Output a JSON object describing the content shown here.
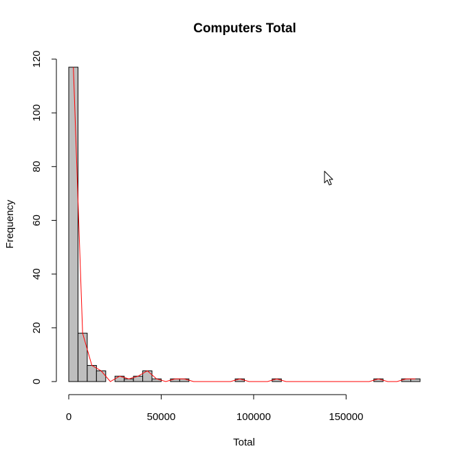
{
  "chart_data": {
    "type": "bar",
    "title": "Computers Total",
    "xlabel": "Total",
    "ylabel": "Frequency",
    "xlim": [
      0,
      190000
    ],
    "ylim": [
      0,
      120
    ],
    "bin_width": 5000,
    "xticks": [
      0,
      50000,
      100000,
      150000
    ],
    "xtick_labels": [
      "0",
      "50000",
      "100000",
      "150000"
    ],
    "yticks": [
      0,
      20,
      40,
      60,
      80,
      100,
      120
    ],
    "ytick_labels": [
      "0",
      "20",
      "40",
      "60",
      "80",
      "100",
      "120"
    ],
    "bins": [
      {
        "start": 0,
        "end": 5000,
        "count": 117
      },
      {
        "start": 5000,
        "end": 10000,
        "count": 18
      },
      {
        "start": 10000,
        "end": 15000,
        "count": 6
      },
      {
        "start": 15000,
        "end": 20000,
        "count": 4
      },
      {
        "start": 20000,
        "end": 25000,
        "count": 0
      },
      {
        "start": 25000,
        "end": 30000,
        "count": 2
      },
      {
        "start": 30000,
        "end": 35000,
        "count": 1
      },
      {
        "start": 35000,
        "end": 40000,
        "count": 2
      },
      {
        "start": 40000,
        "end": 45000,
        "count": 4
      },
      {
        "start": 45000,
        "end": 50000,
        "count": 1
      },
      {
        "start": 50000,
        "end": 55000,
        "count": 0
      },
      {
        "start": 55000,
        "end": 60000,
        "count": 1
      },
      {
        "start": 60000,
        "end": 65000,
        "count": 1
      },
      {
        "start": 65000,
        "end": 70000,
        "count": 0
      },
      {
        "start": 70000,
        "end": 75000,
        "count": 0
      },
      {
        "start": 75000,
        "end": 80000,
        "count": 0
      },
      {
        "start": 80000,
        "end": 85000,
        "count": 0
      },
      {
        "start": 85000,
        "end": 90000,
        "count": 0
      },
      {
        "start": 90000,
        "end": 95000,
        "count": 1
      },
      {
        "start": 95000,
        "end": 100000,
        "count": 0
      },
      {
        "start": 100000,
        "end": 105000,
        "count": 0
      },
      {
        "start": 105000,
        "end": 110000,
        "count": 0
      },
      {
        "start": 110000,
        "end": 115000,
        "count": 1
      },
      {
        "start": 115000,
        "end": 120000,
        "count": 0
      },
      {
        "start": 120000,
        "end": 125000,
        "count": 0
      },
      {
        "start": 125000,
        "end": 130000,
        "count": 0
      },
      {
        "start": 130000,
        "end": 135000,
        "count": 0
      },
      {
        "start": 135000,
        "end": 140000,
        "count": 0
      },
      {
        "start": 140000,
        "end": 145000,
        "count": 0
      },
      {
        "start": 145000,
        "end": 150000,
        "count": 0
      },
      {
        "start": 150000,
        "end": 155000,
        "count": 0
      },
      {
        "start": 155000,
        "end": 160000,
        "count": 0
      },
      {
        "start": 160000,
        "end": 165000,
        "count": 0
      },
      {
        "start": 165000,
        "end": 170000,
        "count": 1
      },
      {
        "start": 170000,
        "end": 175000,
        "count": 0
      },
      {
        "start": 175000,
        "end": 180000,
        "count": 0
      },
      {
        "start": 180000,
        "end": 185000,
        "count": 1
      },
      {
        "start": 185000,
        "end": 190000,
        "count": 1
      }
    ],
    "overlay": {
      "type": "frequency-polygon",
      "color": "#ff0000"
    },
    "bar_color": "#bebebe",
    "grid": false,
    "legend": "none"
  },
  "cursor": {
    "icon": "mouse-pointer-icon"
  }
}
